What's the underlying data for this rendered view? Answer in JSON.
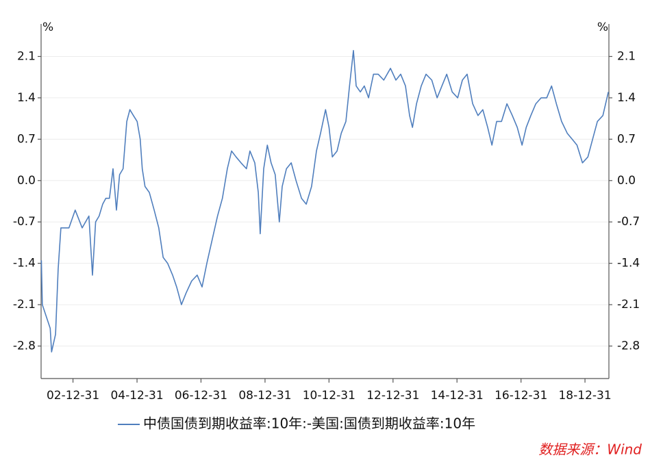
{
  "chart_data": {
    "type": "line",
    "y_unit": "%",
    "y2_unit": "%",
    "source": "数据来源：Wind",
    "x": [
      "02-01-04",
      "02-01-15",
      "02-04-15",
      "02-05-01",
      "02-06-15",
      "02-07-15",
      "02-08-15",
      "02-11-15",
      "03-01-25",
      "03-04-15",
      "03-07-01",
      "03-08-10",
      "03-09-15",
      "03-10-25",
      "03-12-05",
      "04-01-10",
      "04-02-20",
      "04-04-01",
      "04-05-10",
      "04-06-15",
      "04-07-25",
      "04-09-05",
      "04-10-10",
      "04-11-20",
      "05-01-01",
      "05-02-05",
      "05-03-01",
      "05-04-01",
      "05-05-20",
      "05-07-15",
      "05-09-05",
      "05-10-25",
      "05-12-15",
      "06-02-10",
      "06-03-28",
      "06-05-22",
      "06-07-15",
      "06-09-15",
      "06-11-18",
      "07-01-12",
      "07-03-08",
      "07-05-08",
      "07-07-08",
      "07-09-01",
      "07-10-28",
      "07-12-15",
      "08-02-05",
      "08-04-01",
      "08-06-02",
      "08-07-12",
      "08-09-05",
      "08-10-15",
      "08-11-06",
      "08-12-16",
      "09-01-26",
      "09-03-10",
      "09-04-26",
      "09-06-12",
      "09-07-15",
      "09-09-01",
      "09-10-26",
      "09-12-20",
      "10-02-20",
      "10-04-15",
      "10-06-15",
      "10-08-10",
      "10-09-26",
      "10-11-22",
      "11-01-01",
      "11-02-07",
      "11-04-02",
      "11-05-20",
      "11-07-12",
      "11-08-22",
      "11-10-06",
      "11-11-06",
      "11-12-24",
      "12-02-07",
      "12-03-27",
      "12-05-22",
      "12-07-15",
      "12-09-16",
      "12-12-02",
      "13-02-02",
      "13-03-28",
      "13-05-22",
      "13-07-08",
      "13-08-10",
      "13-09-25",
      "13-11-18",
      "14-01-12",
      "14-03-18",
      "14-05-18",
      "14-07-12",
      "14-09-05",
      "14-11-06",
      "15-01-08",
      "15-03-03",
      "15-04-26",
      "15-06-28",
      "15-08-28",
      "15-10-22",
      "15-12-16",
      "16-02-03",
      "16-03-28",
      "16-05-22",
      "16-07-23",
      "16-09-23",
      "16-11-18",
      "17-01-12",
      "17-02-28",
      "17-04-22",
      "17-06-18",
      "17-08-18",
      "17-10-20",
      "17-12-15",
      "18-02-07",
      "18-04-08",
      "18-06-12",
      "18-08-07",
      "18-10-01",
      "18-12-02",
      "19-02-02",
      "19-03-28",
      "19-05-22",
      "19-07-23",
      "19-09-24"
    ],
    "series": [
      {
        "name": "中债国债到期收益率:10年:-美国:国债到期收益率:10年",
        "color": "#4f7ebd",
        "values": [
          -1.35,
          -2.1,
          -2.5,
          -2.9,
          -2.6,
          -1.5,
          -0.8,
          -0.8,
          -0.5,
          -0.8,
          -0.6,
          -1.6,
          -0.7,
          -0.6,
          -0.4,
          -0.3,
          -0.3,
          0.2,
          -0.5,
          0.1,
          0.2,
          1.0,
          1.2,
          1.1,
          1.0,
          0.7,
          0.2,
          -0.1,
          -0.2,
          -0.5,
          -0.8,
          -1.3,
          -1.4,
          -1.6,
          -1.8,
          -2.1,
          -1.9,
          -1.7,
          -1.6,
          -1.8,
          -1.4,
          -1.0,
          -0.6,
          -0.3,
          0.2,
          0.5,
          0.4,
          0.3,
          0.2,
          0.5,
          0.3,
          -0.2,
          -0.9,
          0.2,
          0.6,
          0.3,
          0.1,
          -0.7,
          -0.1,
          0.2,
          0.3,
          0.0,
          -0.3,
          -0.4,
          -0.1,
          0.5,
          0.8,
          1.2,
          0.9,
          0.4,
          0.5,
          0.8,
          1.0,
          1.6,
          2.2,
          1.6,
          1.5,
          1.6,
          1.4,
          1.8,
          1.8,
          1.7,
          1.9,
          1.7,
          1.8,
          1.6,
          1.1,
          0.9,
          1.3,
          1.6,
          1.8,
          1.7,
          1.4,
          1.6,
          1.8,
          1.5,
          1.4,
          1.7,
          1.8,
          1.3,
          1.1,
          1.2,
          0.9,
          0.6,
          1.0,
          1.0,
          1.3,
          1.1,
          0.9,
          0.6,
          0.9,
          1.1,
          1.3,
          1.4,
          1.4,
          1.6,
          1.3,
          1.0,
          0.8,
          0.7,
          0.6,
          0.3,
          0.4,
          0.7,
          1.0,
          1.1,
          1.5
        ]
      }
    ],
    "xlim": [
      "02-01-01",
      "19-09-30"
    ],
    "xticks": [
      "02-12-31",
      "04-12-31",
      "06-12-31",
      "08-12-31",
      "10-12-31",
      "12-12-31",
      "14-12-31",
      "16-12-31",
      "18-12-31"
    ],
    "ylim": [
      -3.35,
      2.65
    ],
    "yticks": [
      2.1,
      1.4,
      0.7,
      {
        "value": 0,
        "label": "0.0"
      },
      -0.7,
      -1.4,
      -2.1,
      -2.8
    ],
    "y2lim": [
      -3.35,
      2.65
    ],
    "y2ticks": [
      2.1,
      1.4,
      0.7,
      {
        "value": 0,
        "label": "0.0"
      },
      -0.7,
      -1.4,
      -2.1,
      -2.8
    ],
    "grid": true,
    "legend": "bottom"
  }
}
